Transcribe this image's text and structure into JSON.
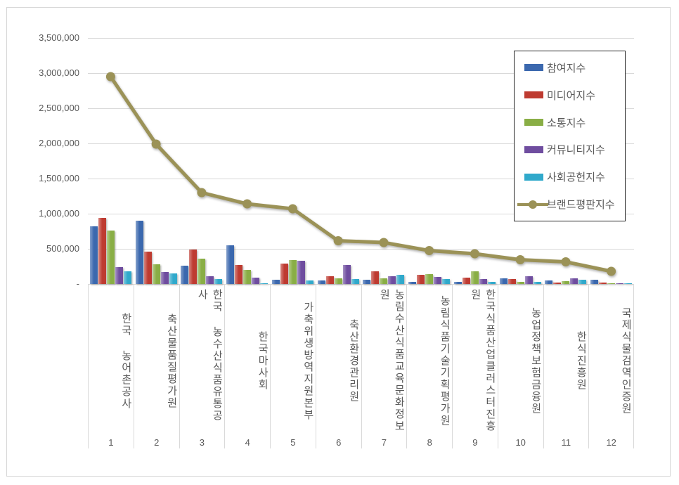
{
  "colors": {
    "participation": "#3B68AE",
    "media": "#BE3B31",
    "communication": "#89AE45",
    "community": "#6F4D9F",
    "social_contribution": "#30A9CB",
    "brand_reputation": "#9B9257",
    "grid": "#d9d9d9",
    "axis_text": "#595959",
    "legend_border": "#262626"
  },
  "chart_data": {
    "type": "bar",
    "note_type": "grouped bars with overlaid line series",
    "title": "",
    "xlabel": "",
    "ylabel": "",
    "grid": true,
    "legend_position": "top-right",
    "categories": [
      "한국 농어촌공사",
      "축산물품질평가원",
      "한국 농수산식품유통공사",
      "한국마사회",
      "가축위생방역지원본부",
      "축산환경관리원",
      "농림수산식품교육문화정보원",
      "농림식품기술기획평가원",
      "한국식품산업클러스터진흥원",
      "농업정책보험금융원",
      "한식진흥원",
      "국제식물검역인증원"
    ],
    "ranks": [
      "1",
      "2",
      "3",
      "4",
      "5",
      "6",
      "7",
      "8",
      "9",
      "10",
      "11",
      "12"
    ],
    "y_axis": {
      "min": 0,
      "max": 3500000,
      "step": 500000,
      "tick_labels_top_down": [
        "3,500,000",
        "3,000,000",
        "2,500,000",
        "2,000,000",
        "1,500,000",
        "1,000,000",
        "500,000",
        "-"
      ]
    },
    "series": [
      {
        "id": "participation-index",
        "name": "참여지수",
        "type": "bar",
        "color": "#3B68AE",
        "values": [
          820000,
          900000,
          265000,
          555000,
          60000,
          55000,
          60000,
          35000,
          30000,
          85000,
          50000,
          65000
        ]
      },
      {
        "id": "media-index",
        "name": "미디어지수",
        "type": "bar",
        "color": "#BE3B31",
        "values": [
          940000,
          460000,
          490000,
          270000,
          295000,
          115000,
          180000,
          130000,
          90000,
          70000,
          25000,
          25000
        ]
      },
      {
        "id": "communication-index",
        "name": "소통지수",
        "type": "bar",
        "color": "#89AE45",
        "values": [
          760000,
          285000,
          360000,
          200000,
          340000,
          85000,
          85000,
          140000,
          185000,
          30000,
          45000,
          15000
        ]
      },
      {
        "id": "community-index",
        "name": "커뮤니티지수",
        "type": "bar",
        "color": "#6F4D9F",
        "values": [
          245000,
          175000,
          110000,
          90000,
          330000,
          275000,
          110000,
          100000,
          75000,
          115000,
          80000,
          12000
        ]
      },
      {
        "id": "social-contribution-index",
        "name": "사회공헌지수",
        "type": "bar",
        "color": "#30A9CB",
        "values": [
          180000,
          150000,
          70000,
          15000,
          50000,
          70000,
          135000,
          75000,
          30000,
          30000,
          60000,
          12000
        ]
      },
      {
        "id": "brand-reputation-index",
        "name": "브랜드평판지수",
        "type": "line",
        "color": "#9B9257",
        "values": [
          2950000,
          1990000,
          1300000,
          1140000,
          1070000,
          615000,
          590000,
          475000,
          430000,
          345000,
          315000,
          180000
        ]
      }
    ]
  }
}
